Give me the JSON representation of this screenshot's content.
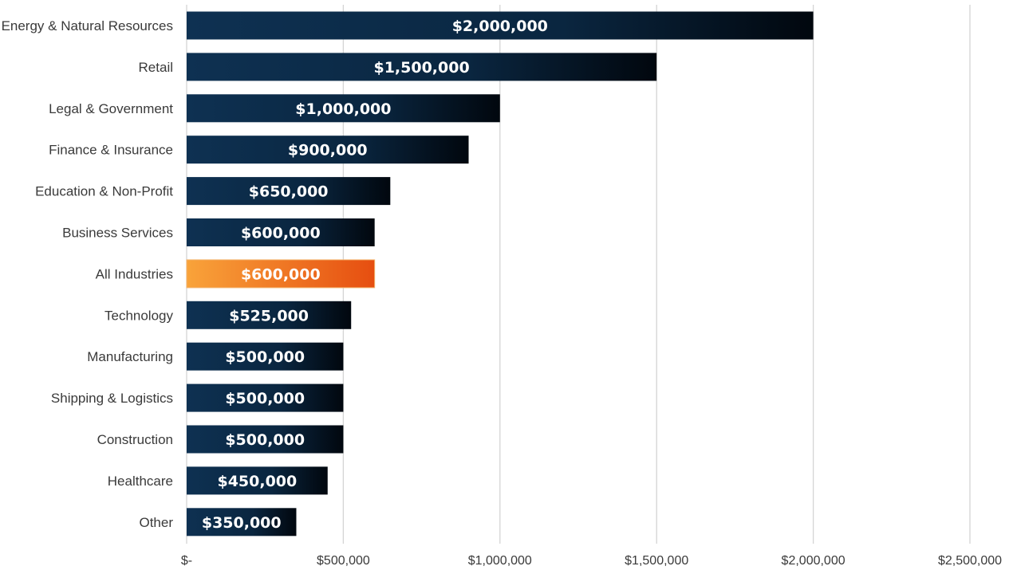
{
  "chart_data": {
    "type": "bar",
    "orientation": "horizontal",
    "title": "",
    "xlabel": "",
    "ylabel": "",
    "categories": [
      "Energy & Natural Resources",
      "Retail",
      "Legal & Government",
      "Finance & Insurance",
      "Education & Non-Profit",
      "Business Services",
      "All Industries",
      "Technology",
      "Manufacturing",
      "Shipping & Logistics",
      "Construction",
      "Healthcare",
      "Other"
    ],
    "values": [
      2000000,
      1500000,
      1000000,
      900000,
      650000,
      600000,
      600000,
      525000,
      500000,
      500000,
      500000,
      450000,
      350000
    ],
    "data_labels": [
      "$2,000,000",
      "$1,500,000",
      "$1,000,000",
      "$900,000",
      "$650,000",
      "$600,000",
      "$600,000",
      "$525,000",
      "$500,000",
      "$500,000",
      "$500,000",
      "$450,000",
      "$350,000"
    ],
    "highlighted_category": "All Industries",
    "xlim": [
      0,
      2500000
    ],
    "x_ticks": [
      0,
      500000,
      1000000,
      1500000,
      2000000,
      2500000
    ],
    "x_tick_labels": [
      "$-",
      "$500,000",
      "$1,000,000",
      "$1,500,000",
      "$2,000,000",
      "$2,500,000"
    ],
    "grid": true,
    "legend": "none",
    "colors": {
      "bar_dark": "#0d2b4a",
      "bar_dark_end": "#020a14",
      "highlight": "#f7941d",
      "highlight_end": "#e8500f",
      "gridline": "#d4d4d4",
      "label_text": "#3a3a3a",
      "data_label_text": "#ffffff"
    }
  }
}
